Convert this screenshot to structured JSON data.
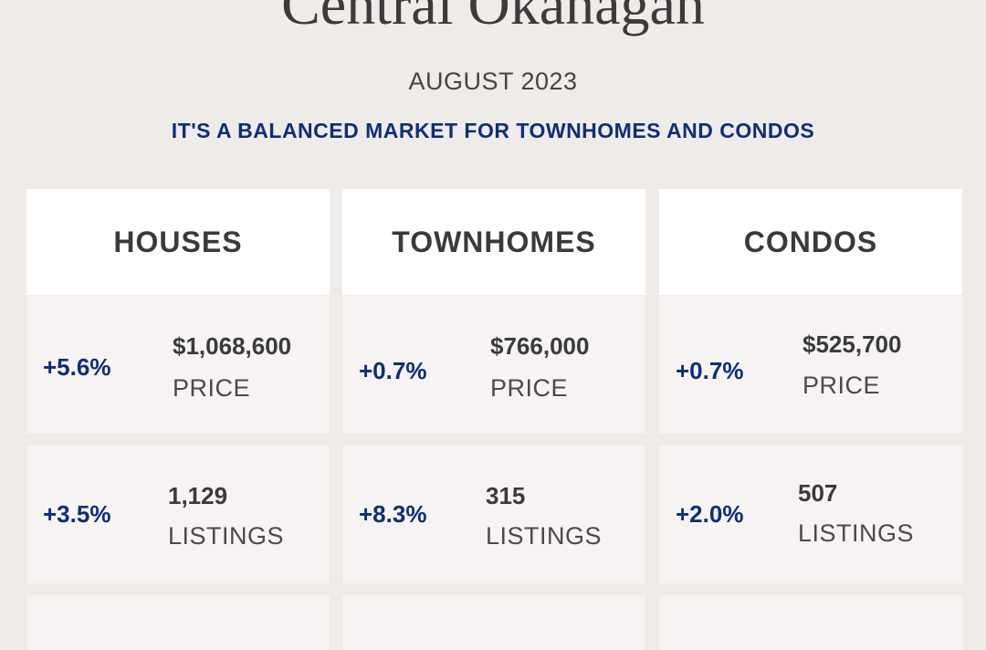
{
  "header": {
    "title": "Central Okanagan",
    "date": "AUGUST 2023",
    "tagline": "IT'S A BALANCED MARKET FOR TOWNHOMES AND CONDOS"
  },
  "columns": [
    {
      "name": "HOUSES",
      "price": {
        "change": "+5.6%",
        "value": "$1,068,600",
        "label": "PRICE"
      },
      "listings": {
        "change": "+3.5%",
        "value": "1,129",
        "label": "LISTINGS"
      }
    },
    {
      "name": "TOWNHOMES",
      "price": {
        "change": "+0.7%",
        "value": "$766,000",
        "label": "PRICE"
      },
      "listings": {
        "change": "+8.3%",
        "value": "315",
        "label": "LISTINGS"
      }
    },
    {
      "name": "CONDOS",
      "price": {
        "change": "+0.7%",
        "value": "$525,700",
        "label": "PRICE"
      },
      "listings": {
        "change": "+2.0%",
        "value": "507",
        "label": "LISTINGS"
      }
    }
  ],
  "colors": {
    "accent": "#0d2e7a",
    "background": "#efebe9",
    "text": "#3a3a3a"
  }
}
